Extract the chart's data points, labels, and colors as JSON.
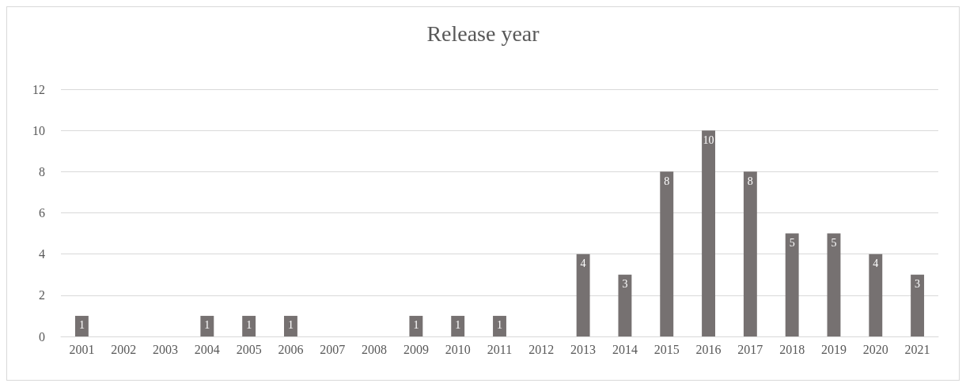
{
  "chart_data": {
    "type": "bar",
    "title": "Release year",
    "categories": [
      "2001",
      "2002",
      "2003",
      "2004",
      "2005",
      "2006",
      "2007",
      "2008",
      "2009",
      "2010",
      "2011",
      "2012",
      "2013",
      "2014",
      "2015",
      "2016",
      "2017",
      "2018",
      "2019",
      "2020",
      "2021"
    ],
    "values": [
      1,
      0,
      0,
      1,
      1,
      1,
      0,
      0,
      1,
      1,
      1,
      0,
      4,
      3,
      8,
      10,
      8,
      5,
      5,
      4,
      3
    ],
    "value_labels": [
      "1",
      null,
      null,
      "1",
      "1",
      "1",
      null,
      null,
      "1",
      "1",
      "1",
      null,
      "4",
      "3",
      "8",
      "10",
      "8",
      "5",
      "5",
      "4",
      "3"
    ],
    "color": "#767171",
    "ylim": [
      0,
      12
    ],
    "yticks": [
      0,
      2,
      4,
      6,
      8,
      10,
      12
    ],
    "grid": "y"
  }
}
